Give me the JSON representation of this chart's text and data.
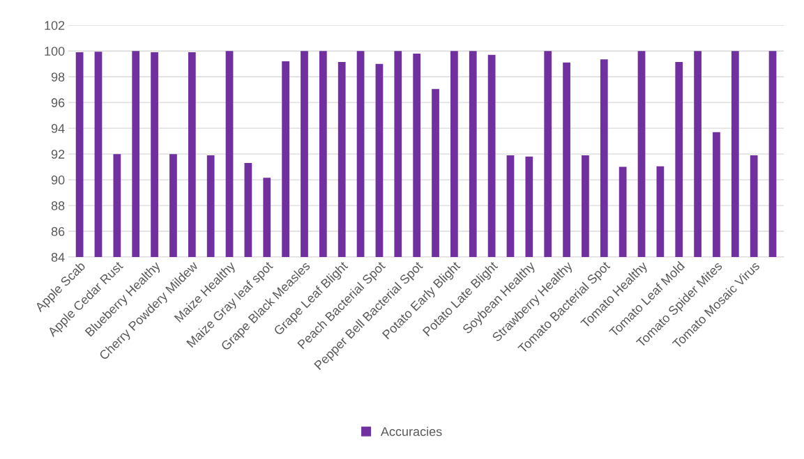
{
  "chart_data": {
    "type": "bar",
    "categories": [
      "Apple Scab",
      null,
      "Apple Cedar Rust",
      null,
      "Blueberry Healthy",
      null,
      "Cherry Powdery Mildew",
      null,
      "Maize Healthy",
      null,
      "Maize Gray leaf spot",
      null,
      "Grape Black Measles",
      null,
      "Grape Leaf Blight",
      null,
      "Peach Bacterial Spot",
      null,
      "Pepper Bell Bacterial Spot",
      null,
      "Potato Early Blight",
      null,
      "Potato Late Blight",
      null,
      "Soybean Healthy",
      null,
      "Strawberry Healthy",
      null,
      "Tomato Bacterial Spot",
      null,
      "Tomato Healthy",
      null,
      "Tomato Leaf Mold",
      null,
      "Tomato Spider Mites",
      null,
      "Tomato Mosaic Virus",
      null
    ],
    "series": [
      {
        "name": "Accuracies",
        "color": "#7030a0",
        "values": [
          99.9,
          99.95,
          92.0,
          100,
          99.9,
          92.0,
          99.9,
          91.9,
          100,
          91.3,
          90.15,
          99.2,
          100,
          100,
          99.15,
          100,
          99.0,
          100,
          99.8,
          97.05,
          100,
          100,
          99.7,
          91.9,
          91.8,
          100,
          99.1,
          91.9,
          99.35,
          91.0,
          100,
          91.05,
          99.15,
          100,
          93.7,
          100,
          91.9,
          100
        ]
      }
    ],
    "ylim": [
      84,
      102
    ],
    "yticks": [
      84,
      86,
      88,
      90,
      92,
      94,
      96,
      98,
      100,
      102
    ],
    "grid": "y",
    "legend": "bottom"
  }
}
